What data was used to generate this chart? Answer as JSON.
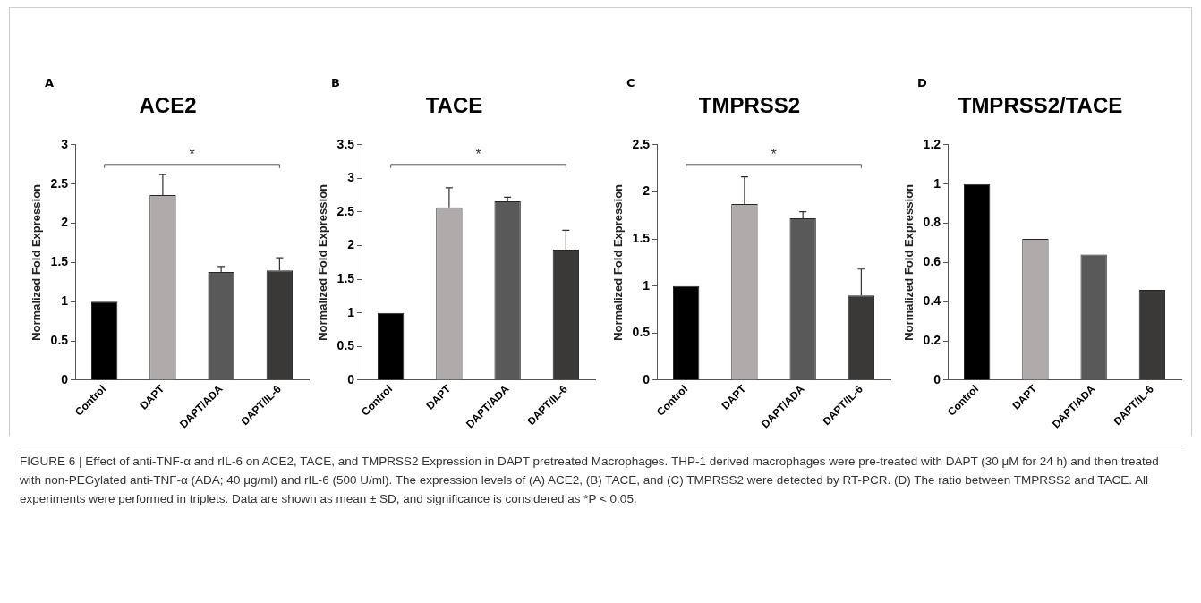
{
  "chart_data": [
    {
      "type": "bar",
      "title": "ACE2",
      "ylabel": "Normalized Fold Expression",
      "categories": [
        "Control",
        "DAPT",
        "DAPT/ADA",
        "DAPT/IL-6"
      ],
      "values": [
        1.0,
        2.36,
        1.38,
        1.4
      ],
      "errors": [
        null,
        0.26,
        0.07,
        0.16
      ],
      "colors": [
        "#000000",
        "#aeabaa",
        "#595959",
        "#3b3838"
      ],
      "ylim": [
        0,
        3
      ],
      "yticks": [
        0,
        0.5,
        1,
        1.5,
        2,
        2.5,
        3
      ],
      "grid": false,
      "legend": false,
      "annotations": [
        "A",
        "*",
        "FIGURE 6 | Effect of anti-TNF-α and rIL-6 on ACE2, TACE, and TMPRSS2 Expression in DAPT pretreated Macrophages. THP-1 derived macrophages were pre-treated with DAPT (30 μM for 24 h) and then treated with non-PEGylated anti-TNF-α (ADA; 40 μg/ml) and rIL-6 (500 U/ml). The expression levels of (A) ACE2, (B) TACE, and (C) TMPRSS2 were detected by RT-PCR. (D) The ratio between TMPRSS2 and TACE. All experiments were performed in triplets. Data are shown as mean ± SD, and significance is considered as *P < 0.05."
      ]
    },
    {
      "type": "bar",
      "title": "TACE",
      "ylabel": "Normalized Fold Expression",
      "categories": [
        "Control",
        "DAPT",
        "DAPT/ADA",
        "DAPT/IL-6"
      ],
      "values": [
        1.0,
        2.57,
        2.66,
        1.94
      ],
      "errors": [
        null,
        0.29,
        0.06,
        0.29
      ],
      "colors": [
        "#000000",
        "#aeabaa",
        "#595959",
        "#3b3838"
      ],
      "ylim": [
        0,
        3.5
      ],
      "yticks": [
        0,
        0.5,
        1,
        1.5,
        2,
        2.5,
        3,
        3.5
      ],
      "grid": false,
      "legend": false,
      "annotations": [
        "B",
        "*"
      ]
    },
    {
      "type": "bar",
      "title": "TMPRSS2",
      "ylabel": "Normalized Fold Expression",
      "categories": [
        "Control",
        "DAPT",
        "DAPT/ADA",
        "DAPT/IL-6"
      ],
      "values": [
        1.0,
        1.87,
        1.72,
        0.9
      ],
      "errors": [
        null,
        0.29,
        0.07,
        0.28
      ],
      "colors": [
        "#000000",
        "#aeabaa",
        "#595959",
        "#3b3838"
      ],
      "ylim": [
        0,
        2.5
      ],
      "yticks": [
        0,
        0.5,
        1,
        1.5,
        2,
        2.5
      ],
      "grid": false,
      "legend": false,
      "annotations": [
        "C",
        "*"
      ]
    },
    {
      "type": "bar",
      "title": "TMPRSS2/TACE",
      "ylabel": "Normalized Fold Expression",
      "categories": [
        "Control",
        "DAPT",
        "DAPT/ADA",
        "DAPT/IL-6"
      ],
      "values": [
        1.0,
        0.72,
        0.64,
        0.46
      ],
      "colors": [
        "#000000",
        "#aeabaa",
        "#595959",
        "#3b3838"
      ],
      "ylim": [
        0,
        1.2
      ],
      "yticks": [
        0,
        0.2,
        0.4,
        0.6,
        0.8,
        1,
        1.2
      ],
      "grid": false,
      "legend": false,
      "annotations": [
        "D"
      ]
    }
  ]
}
